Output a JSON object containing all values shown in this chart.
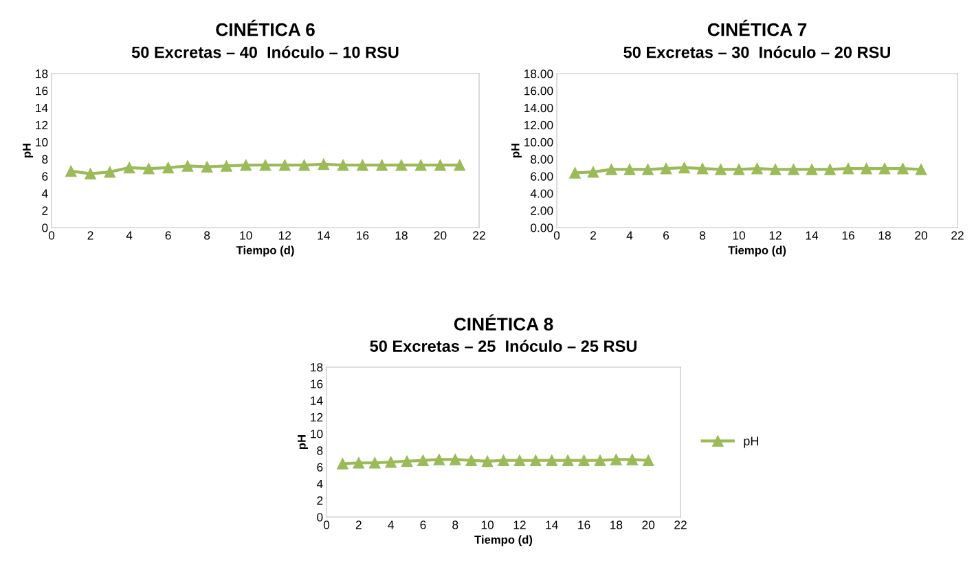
{
  "chart_data": [
    {
      "type": "line",
      "title": "CINÉTICA 6",
      "subtitle": "50 Excretas – 40  Inóculo – 10 RSU",
      "xlabel": "Tiempo (d)",
      "ylabel": "pH",
      "marker": "triangle",
      "line_style": "solid",
      "grid": false,
      "legend": false,
      "x": [
        1,
        2,
        3,
        4,
        5,
        6,
        7,
        8,
        9,
        10,
        11,
        12,
        13,
        14,
        15,
        16,
        17,
        18,
        19,
        20,
        21
      ],
      "series": [
        {
          "color": "#9bbb59",
          "values": [
            6.6,
            6.3,
            6.5,
            7.0,
            6.9,
            7.0,
            7.2,
            7.1,
            7.2,
            7.3,
            7.3,
            7.3,
            7.3,
            7.4,
            7.3,
            7.3,
            7.3,
            7.3,
            7.3,
            7.3,
            7.3
          ]
        }
      ],
      "xlim": [
        0,
        22
      ],
      "xticks": [
        0,
        2,
        4,
        6,
        8,
        10,
        12,
        14,
        16,
        18,
        20,
        22
      ],
      "ylim": [
        0,
        18
      ],
      "yticks": [
        0,
        2,
        4,
        6,
        8,
        10,
        12,
        14,
        16,
        18
      ]
    },
    {
      "type": "line",
      "title": "CINÉTICA 7",
      "subtitle": "50 Excretas – 30  Inóculo – 20 RSU",
      "xlabel": "Tiempo (d)",
      "ylabel": "pH",
      "marker": "triangle",
      "line_style": "solid",
      "grid": false,
      "legend": false,
      "x": [
        1,
        2,
        3,
        4,
        5,
        6,
        7,
        8,
        9,
        10,
        11,
        12,
        13,
        14,
        15,
        16,
        17,
        18,
        19,
        20
      ],
      "series": [
        {
          "color": "#9bbb59",
          "values": [
            6.4,
            6.5,
            6.8,
            6.8,
            6.8,
            6.9,
            7.0,
            6.9,
            6.8,
            6.8,
            6.9,
            6.8,
            6.8,
            6.8,
            6.8,
            6.9,
            6.9,
            6.9,
            6.9,
            6.8
          ]
        }
      ],
      "xlim": [
        0,
        22
      ],
      "xticks": [
        0,
        2,
        4,
        6,
        8,
        10,
        12,
        14,
        16,
        18,
        20,
        22
      ],
      "ylim": [
        0,
        18
      ],
      "yticks": [
        {
          "value": 0,
          "label": "0.00"
        },
        {
          "value": 2,
          "label": "2.00"
        },
        {
          "value": 4,
          "label": "4.00"
        },
        {
          "value": 6,
          "label": "6.00"
        },
        {
          "value": 8,
          "label": "8.00"
        },
        {
          "value": 10,
          "label": "10.00"
        },
        {
          "value": 12,
          "label": "12.00"
        },
        {
          "value": 14,
          "label": "14.00"
        },
        {
          "value": 16,
          "label": "16.00"
        },
        {
          "value": 18,
          "label": "18.00"
        }
      ]
    },
    {
      "type": "line",
      "title": "CINÉTICA 8",
      "subtitle": "50 Excretas – 25  Inóculo – 25 RSU",
      "xlabel": "Tiempo (d)",
      "ylabel": "pH",
      "marker": "triangle",
      "line_style": "solid",
      "grid": false,
      "legend": "right",
      "x": [
        1,
        2,
        3,
        4,
        5,
        6,
        7,
        8,
        9,
        10,
        11,
        12,
        13,
        14,
        15,
        16,
        17,
        18,
        19,
        20
      ],
      "series": [
        {
          "name": "pH",
          "color": "#9bbb59",
          "values": [
            6.4,
            6.5,
            6.5,
            6.6,
            6.7,
            6.8,
            6.9,
            6.9,
            6.8,
            6.7,
            6.8,
            6.8,
            6.8,
            6.8,
            6.8,
            6.8,
            6.8,
            6.9,
            6.9,
            6.8
          ]
        }
      ],
      "xlim": [
        0,
        22
      ],
      "xticks": [
        0,
        2,
        4,
        6,
        8,
        10,
        12,
        14,
        16,
        18,
        20,
        22
      ],
      "ylim": [
        0,
        18
      ],
      "yticks": [
        0,
        2,
        4,
        6,
        8,
        10,
        12,
        14,
        16,
        18
      ]
    }
  ]
}
